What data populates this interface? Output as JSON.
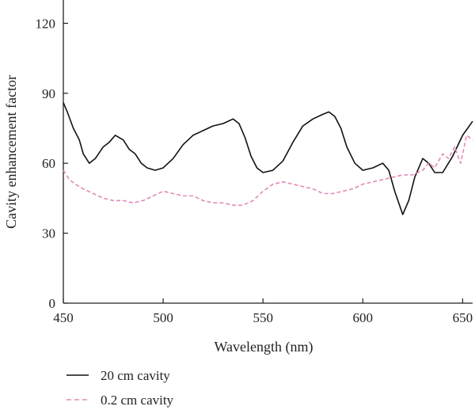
{
  "chart_data": {
    "type": "line",
    "xlabel": "Wavelength (nm)",
    "ylabel": "Cavity enhancement factor",
    "xlim": [
      450,
      655
    ],
    "ylim": [
      0,
      130
    ],
    "x_ticks": [
      450,
      500,
      550,
      600,
      650
    ],
    "y_ticks": [
      0,
      30,
      60,
      90,
      120
    ],
    "grid": false,
    "legend_position": "bottom-left",
    "series": [
      {
        "name": "20 cm cavity",
        "color": "#111111",
        "style": "solid",
        "x": [
          450,
          452,
          455,
          458,
          460,
          463,
          466,
          470,
          473,
          476,
          480,
          483,
          486,
          489,
          492,
          496,
          500,
          505,
          510,
          515,
          520,
          525,
          530,
          535,
          538,
          541,
          544,
          547,
          550,
          555,
          560,
          565,
          570,
          575,
          580,
          583,
          586,
          589,
          592,
          596,
          600,
          605,
          610,
          613,
          616,
          620,
          623,
          626,
          630,
          633,
          636,
          640,
          645,
          650,
          655
        ],
        "y": [
          86,
          82,
          75,
          70,
          64,
          60,
          62,
          67,
          69,
          72,
          70,
          66,
          64,
          60,
          58,
          57,
          58,
          62,
          68,
          72,
          74,
          76,
          77,
          79,
          77,
          71,
          63,
          58,
          56,
          57,
          61,
          69,
          76,
          79,
          81,
          82,
          80,
          75,
          67,
          60,
          57,
          58,
          60,
          57,
          48,
          38,
          44,
          54,
          62,
          60,
          56,
          56,
          63,
          72,
          78
        ]
      },
      {
        "name": "0.2 cm cavity",
        "color": "#e38ab7",
        "style": "dashed",
        "x": [
          450,
          453,
          456,
          460,
          465,
          470,
          475,
          480,
          485,
          490,
          495,
          500,
          505,
          510,
          515,
          520,
          525,
          530,
          535,
          540,
          545,
          550,
          555,
          560,
          565,
          570,
          575,
          580,
          585,
          590,
          595,
          600,
          605,
          610,
          615,
          620,
          625,
          630,
          633,
          636,
          640,
          643,
          646,
          649,
          652,
          655
        ],
        "y": [
          57,
          53,
          51,
          49,
          47,
          45,
          44,
          44,
          43,
          44,
          46,
          48,
          47,
          46,
          46,
          44,
          43,
          43,
          42,
          42,
          44,
          48,
          51,
          52,
          51,
          50,
          49,
          47,
          47,
          48,
          49,
          51,
          52,
          53,
          54,
          55,
          55,
          57,
          60,
          58,
          64,
          62,
          67,
          60,
          72,
          70
        ]
      }
    ]
  }
}
